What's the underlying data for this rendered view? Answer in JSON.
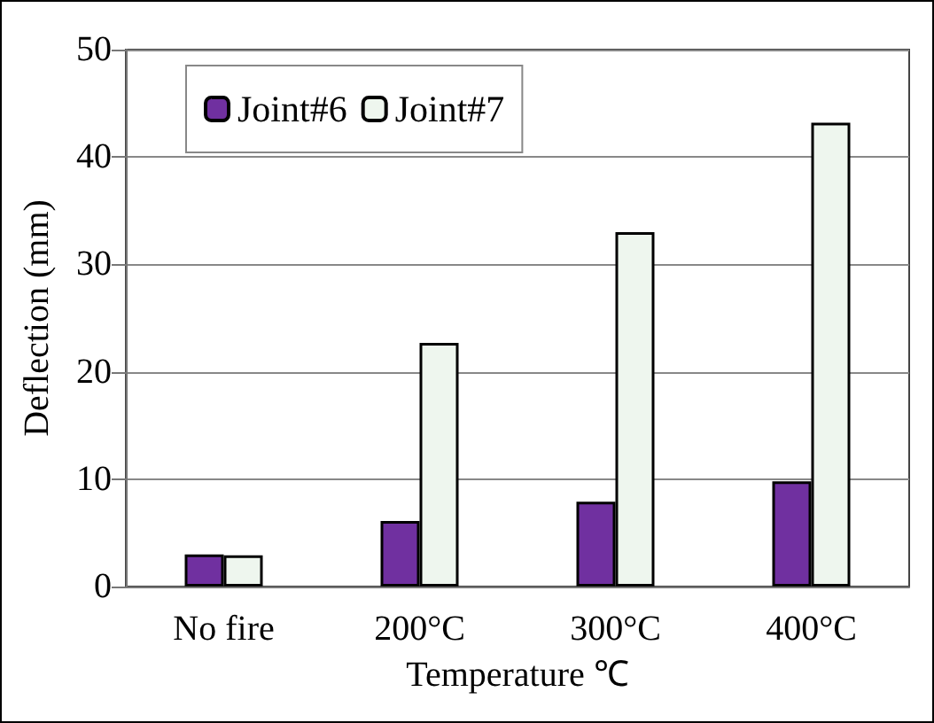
{
  "chart_data": {
    "type": "bar",
    "xlabel": "Temperature ℃",
    "ylabel": "Deflection (mm)",
    "categories": [
      "No fire",
      "200°C",
      "300°C",
      "400°C"
    ],
    "series": [
      {
        "name": "Joint#6",
        "color": "#7030a0",
        "values": [
          3.0,
          6.1,
          7.9,
          9.8
        ]
      },
      {
        "name": "Joint#7",
        "color": "#eef6ee",
        "values": [
          2.9,
          22.7,
          33.0,
          43.2
        ]
      }
    ],
    "ylim": [
      0,
      50
    ],
    "yticks": [
      0,
      10,
      20,
      30,
      40,
      50
    ],
    "grid": "y",
    "legend": "top left"
  }
}
